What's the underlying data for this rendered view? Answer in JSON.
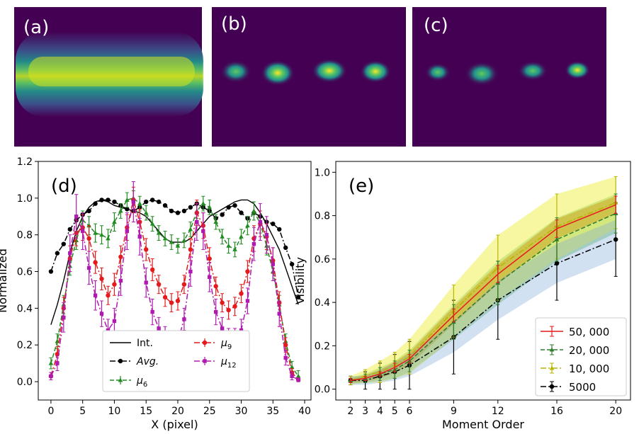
{
  "panels": {
    "a": {
      "label": "(a)"
    },
    "b": {
      "label": "(b)"
    },
    "c": {
      "label": "(c)"
    }
  },
  "colors": {
    "background_dark": "#440154",
    "int": "#000000",
    "avg": "#000000",
    "mu6": "#228b22",
    "mu9": "#e41a1c",
    "mu12": "#b019b0",
    "s50000": "#e41a1c",
    "s20000": "#2e7d2e",
    "s10000": "#b5b500",
    "s5000": "#000000"
  },
  "chart_data": [
    {
      "panel": "(d)",
      "type": "line",
      "xlabel": "X (pixel)",
      "ylabel": "Normalized",
      "xlim": [
        -2,
        41
      ],
      "ylim": [
        -0.1,
        1.2
      ],
      "xticks": [
        0,
        5,
        10,
        15,
        20,
        25,
        30,
        35,
        40
      ],
      "xtick_labels": [
        "0",
        "5",
        "10",
        "15",
        "20",
        "25",
        "30",
        "35",
        "40"
      ],
      "yticks": [
        0.0,
        0.2,
        0.4,
        0.6,
        0.8,
        1.0,
        1.2
      ],
      "ytick_labels": [
        "0.0",
        "0.2",
        "0.4",
        "0.6",
        "0.8",
        "1.0",
        "1.2"
      ],
      "legend": {
        "position": "bottom-center",
        "entries": [
          "Int.",
          "Avg.",
          "μ6",
          "μ9",
          "μ12"
        ]
      },
      "series": [
        {
          "name": "Int.",
          "key": "int",
          "style": "solid",
          "marker": "none",
          "x": [
            0,
            1,
            2,
            3,
            4,
            5,
            6,
            7,
            8,
            9,
            10,
            11,
            12,
            13,
            14,
            15,
            16,
            17,
            18,
            19,
            20,
            21,
            22,
            23,
            24,
            25,
            26,
            27,
            28,
            29,
            30,
            31,
            32,
            33,
            34,
            35,
            36,
            37,
            38,
            39
          ],
          "y": [
            0.31,
            0.42,
            0.55,
            0.7,
            0.82,
            0.9,
            0.95,
            0.98,
            0.99,
            0.98,
            0.96,
            0.95,
            0.94,
            0.93,
            0.92,
            0.9,
            0.86,
            0.82,
            0.78,
            0.76,
            0.76,
            0.76,
            0.78,
            0.82,
            0.86,
            0.9,
            0.92,
            0.94,
            0.96,
            0.98,
            0.99,
            0.99,
            0.97,
            0.92,
            0.86,
            0.79,
            0.72,
            0.62,
            0.52,
            0.42
          ]
        },
        {
          "name": "Avg.",
          "key": "avg",
          "style": "dashdot",
          "marker": "circle",
          "x": [
            0,
            1,
            2,
            3,
            4,
            5,
            6,
            7,
            8,
            9,
            10,
            11,
            12,
            13,
            14,
            15,
            16,
            17,
            18,
            19,
            20,
            21,
            22,
            23,
            24,
            25,
            26,
            27,
            28,
            29,
            30,
            31,
            32,
            33,
            34,
            35,
            36,
            37,
            38,
            39
          ],
          "y": [
            0.6,
            0.7,
            0.75,
            0.83,
            0.88,
            0.91,
            0.93,
            0.97,
            0.99,
            0.99,
            0.98,
            0.96,
            0.94,
            0.93,
            0.95,
            0.98,
            0.99,
            0.98,
            0.96,
            0.93,
            0.92,
            0.93,
            0.95,
            0.97,
            0.95,
            0.93,
            0.89,
            0.91,
            0.95,
            0.96,
            0.92,
            0.89,
            0.92,
            0.9,
            0.87,
            0.86,
            0.83,
            0.73,
            0.64,
            0.46
          ]
        },
        {
          "name": "μ6",
          "key": "mu6",
          "style": "dashed",
          "marker": "triangle",
          "x": [
            0,
            1,
            2,
            3,
            4,
            5,
            6,
            7,
            8,
            9,
            10,
            11,
            12,
            13,
            14,
            15,
            16,
            17,
            18,
            19,
            20,
            21,
            22,
            23,
            24,
            25,
            26,
            27,
            28,
            29,
            30,
            31,
            32,
            33,
            34,
            35,
            36,
            37,
            38,
            39
          ],
          "y": [
            0.1,
            0.22,
            0.42,
            0.63,
            0.77,
            0.88,
            0.85,
            0.81,
            0.8,
            0.78,
            0.87,
            0.93,
            0.99,
            1.0,
            0.97,
            0.92,
            0.86,
            0.81,
            0.78,
            0.76,
            0.74,
            0.77,
            0.83,
            0.93,
            0.97,
            0.95,
            0.87,
            0.79,
            0.74,
            0.72,
            0.79,
            0.85,
            0.93,
            0.86,
            0.74,
            0.6,
            0.42,
            0.22,
            0.08,
            0.03
          ],
          "err": [
            0.03,
            0.04,
            0.05,
            0.05,
            0.05,
            0.05,
            0.05,
            0.05,
            0.05,
            0.05,
            0.05,
            0.04,
            0.04,
            0.04,
            0.04,
            0.04,
            0.04,
            0.04,
            0.04,
            0.04,
            0.04,
            0.04,
            0.04,
            0.04,
            0.04,
            0.04,
            0.04,
            0.04,
            0.04,
            0.04,
            0.04,
            0.05,
            0.05,
            0.05,
            0.05,
            0.05,
            0.05,
            0.04,
            0.03,
            0.03
          ]
        },
        {
          "name": "μ9",
          "key": "mu9",
          "style": "dashdot",
          "marker": "circle",
          "x": [
            0,
            1,
            2,
            3,
            4,
            5,
            6,
            7,
            8,
            9,
            10,
            11,
            12,
            13,
            14,
            15,
            16,
            17,
            18,
            19,
            20,
            21,
            22,
            23,
            24,
            25,
            26,
            27,
            28,
            29,
            30,
            31,
            32,
            33,
            34,
            35,
            36,
            37,
            38,
            39
          ],
          "y": [
            0.03,
            0.15,
            0.4,
            0.67,
            0.81,
            0.84,
            0.78,
            0.65,
            0.56,
            0.47,
            0.53,
            0.68,
            0.84,
            0.99,
            0.87,
            0.72,
            0.61,
            0.53,
            0.46,
            0.43,
            0.44,
            0.53,
            0.72,
            0.92,
            0.85,
            0.67,
            0.52,
            0.43,
            0.39,
            0.41,
            0.48,
            0.6,
            0.78,
            0.86,
            0.79,
            0.66,
            0.43,
            0.2,
            0.05,
            0.01
          ],
          "err": [
            0.02,
            0.04,
            0.06,
            0.07,
            0.07,
            0.07,
            0.07,
            0.06,
            0.06,
            0.05,
            0.06,
            0.06,
            0.07,
            0.07,
            0.07,
            0.06,
            0.06,
            0.05,
            0.05,
            0.05,
            0.05,
            0.05,
            0.06,
            0.07,
            0.07,
            0.06,
            0.05,
            0.05,
            0.05,
            0.05,
            0.05,
            0.06,
            0.07,
            0.07,
            0.07,
            0.07,
            0.06,
            0.04,
            0.02,
            0.01
          ]
        },
        {
          "name": "μ12",
          "key": "mu12",
          "style": "dashdot",
          "marker": "square",
          "x": [
            0,
            1,
            2,
            3,
            4,
            5,
            6,
            7,
            8,
            9,
            10,
            11,
            12,
            13,
            14,
            15,
            16,
            17,
            18,
            19,
            20,
            21,
            22,
            23,
            24,
            25,
            26,
            27,
            28,
            29,
            30,
            31,
            32,
            33,
            34,
            35,
            36,
            37,
            38,
            39
          ],
          "y": [
            0.03,
            0.1,
            0.35,
            0.7,
            0.9,
            0.82,
            0.62,
            0.47,
            0.37,
            0.28,
            0.33,
            0.55,
            0.82,
            0.98,
            0.79,
            0.54,
            0.38,
            0.29,
            0.24,
            0.21,
            0.22,
            0.34,
            0.6,
            0.87,
            0.82,
            0.57,
            0.38,
            0.29,
            0.24,
            0.24,
            0.28,
            0.44,
            0.75,
            0.87,
            0.8,
            0.64,
            0.37,
            0.13,
            0.03,
            0.01
          ],
          "err": [
            0.02,
            0.04,
            0.08,
            0.1,
            0.12,
            0.1,
            0.09,
            0.08,
            0.07,
            0.06,
            0.07,
            0.08,
            0.1,
            0.11,
            0.1,
            0.08,
            0.07,
            0.06,
            0.06,
            0.05,
            0.05,
            0.06,
            0.08,
            0.1,
            0.1,
            0.08,
            0.07,
            0.06,
            0.05,
            0.05,
            0.06,
            0.07,
            0.09,
            0.1,
            0.1,
            0.09,
            0.07,
            0.04,
            0.02,
            0.01
          ]
        }
      ]
    },
    {
      "panel": "(e)",
      "type": "line",
      "xlabel": "Moment Order",
      "ylabel": "Visibility",
      "xlim": [
        1,
        21
      ],
      "ylim": [
        -0.05,
        1.05
      ],
      "xticks": [
        2,
        3,
        4,
        5,
        6,
        9,
        12,
        16,
        20
      ],
      "xtick_labels": [
        "2",
        "3",
        "4",
        "5",
        "6",
        "9",
        "12",
        "16",
        "20"
      ],
      "yticks": [
        0.0,
        0.2,
        0.4,
        0.6,
        0.8,
        1.0
      ],
      "ytick_labels": [
        "0.0",
        "0.2",
        "0.4",
        "0.6",
        "0.8",
        "1.0"
      ],
      "legend": {
        "position": "bottom-right",
        "entries": [
          "50, 000",
          "20, 000",
          "10, 000",
          "5000"
        ]
      },
      "series": [
        {
          "name": "50, 000",
          "key": "s50000",
          "style": "solid",
          "marker": "none",
          "x": [
            2,
            3,
            4,
            5,
            6,
            9,
            12,
            16,
            20
          ],
          "y": [
            0.04,
            0.05,
            0.07,
            0.1,
            0.14,
            0.34,
            0.53,
            0.74,
            0.85
          ],
          "err": [
            0.01,
            0.01,
            0.01,
            0.02,
            0.02,
            0.03,
            0.04,
            0.04,
            0.04
          ],
          "band": [
            0.01,
            0.015,
            0.02,
            0.025,
            0.03,
            0.04,
            0.045,
            0.045,
            0.04
          ],
          "band_color": "#e8611a",
          "band_opacity": 0.75
        },
        {
          "name": "20, 000",
          "key": "s20000",
          "style": "dashed",
          "marker": "triangle",
          "x": [
            2,
            3,
            4,
            5,
            6,
            9,
            12,
            16,
            20
          ],
          "y": [
            0.04,
            0.05,
            0.07,
            0.09,
            0.13,
            0.31,
            0.49,
            0.69,
            0.81
          ],
          "err": [
            0.01,
            0.02,
            0.03,
            0.04,
            0.05,
            0.08,
            0.1,
            0.1,
            0.09
          ],
          "band": [
            0.015,
            0.02,
            0.03,
            0.04,
            0.05,
            0.08,
            0.1,
            0.1,
            0.09
          ],
          "band_color": "#4caf50",
          "band_opacity": 0.4
        },
        {
          "name": "10, 000",
          "key": "s10000",
          "style": "dashdot",
          "marker": "triangle",
          "x": [
            2,
            3,
            4,
            5,
            6,
            9,
            12,
            16,
            20
          ],
          "y": [
            0.04,
            0.06,
            0.08,
            0.11,
            0.15,
            0.36,
            0.56,
            0.75,
            0.86
          ],
          "err": [
            0.02,
            0.03,
            0.05,
            0.06,
            0.08,
            0.12,
            0.15,
            0.15,
            0.12
          ],
          "band": [
            0.02,
            0.03,
            0.05,
            0.06,
            0.08,
            0.12,
            0.15,
            0.15,
            0.12
          ],
          "band_color": "#f0f046",
          "band_opacity": 0.5
        },
        {
          "name": "5000",
          "key": "s5000",
          "style": "dashdot",
          "marker": "circle",
          "x": [
            2,
            3,
            4,
            5,
            6,
            9,
            12,
            16,
            20
          ],
          "y": [
            0.04,
            0.04,
            0.06,
            0.08,
            0.11,
            0.24,
            0.41,
            0.58,
            0.69
          ],
          "err": [
            0.02,
            0.04,
            0.06,
            0.08,
            0.11,
            0.17,
            0.18,
            0.17,
            0.17
          ],
          "band": [
            0.02,
            0.02,
            0.03,
            0.04,
            0.05,
            0.07,
            0.09,
            0.09,
            0.09
          ],
          "band_color": "#7fa8d8",
          "band_opacity": 0.35
        }
      ]
    }
  ]
}
